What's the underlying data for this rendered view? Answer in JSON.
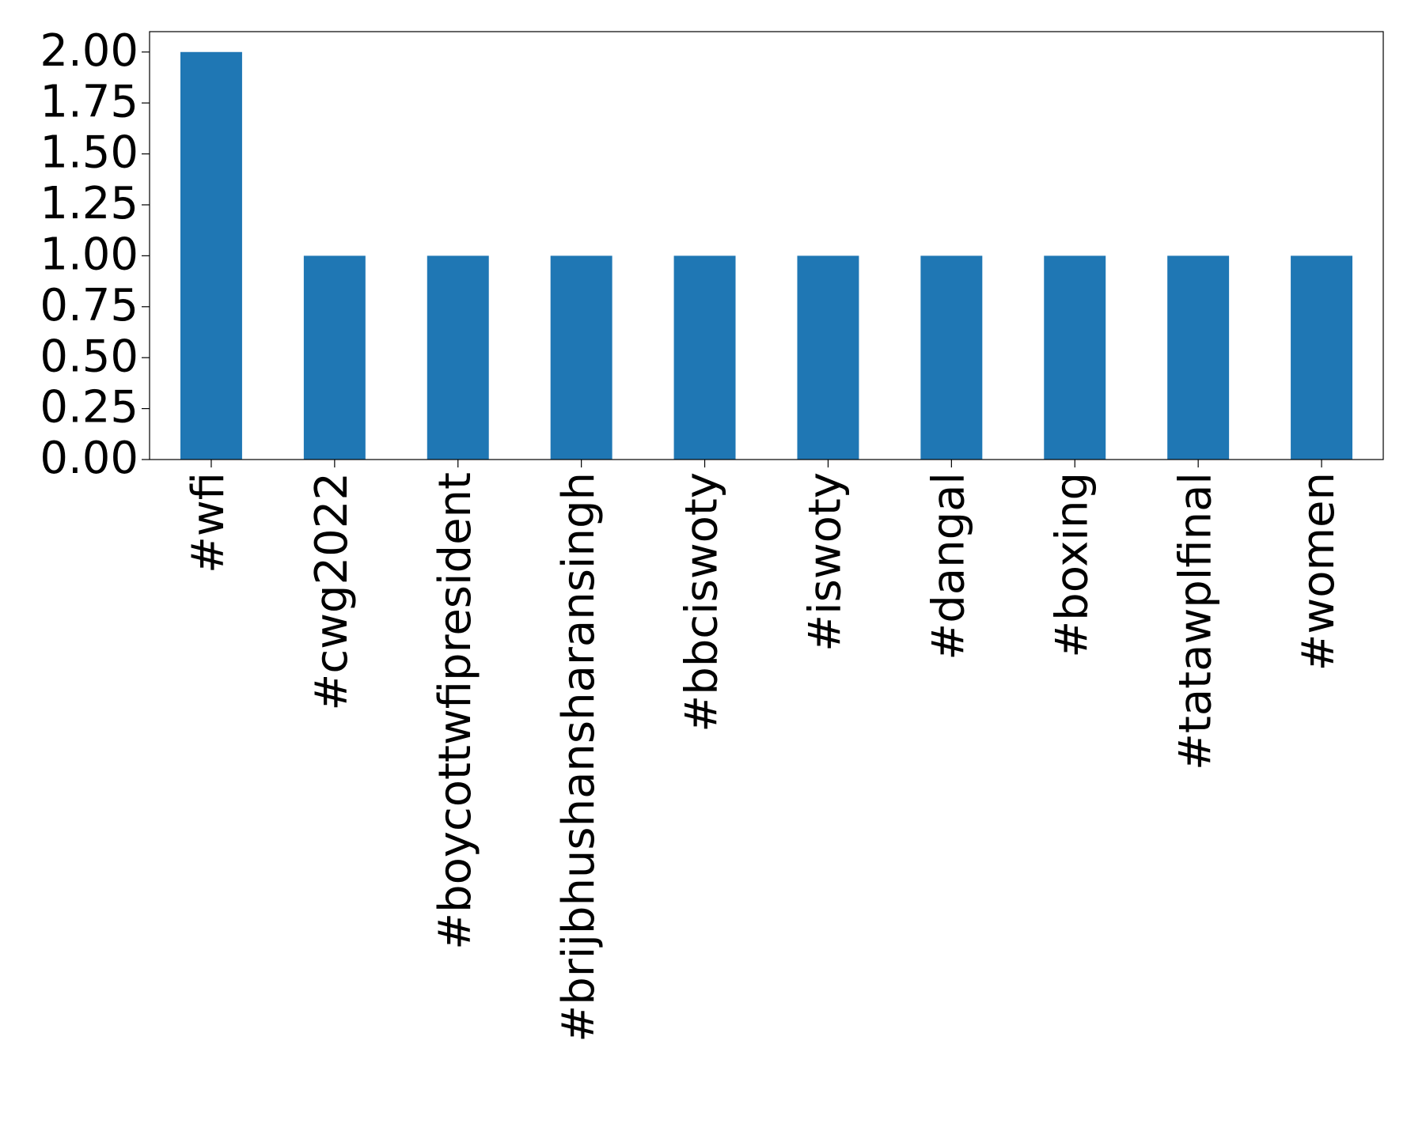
{
  "chart_data": {
    "type": "bar",
    "categories": [
      "#wfi",
      "#cwg2022",
      "#boycottwfipresident",
      "#brijbhushansharansingh",
      "#bbciswoty",
      "#iswoty",
      "#dangal",
      "#boxing",
      "#tatawplfinal",
      "#women"
    ],
    "values": [
      2,
      1,
      1,
      1,
      1,
      1,
      1,
      1,
      1,
      1
    ],
    "color": "#1f77b4",
    "ylim": [
      0,
      2.1
    ],
    "yticks": [
      {
        "value": 0,
        "label": "0.00"
      },
      {
        "value": 0.25,
        "label": "0.25"
      },
      {
        "value": 0.5,
        "label": "0.50"
      },
      {
        "value": 0.75,
        "label": "0.75"
      },
      {
        "value": 1,
        "label": "1.00"
      },
      {
        "value": 1.25,
        "label": "1.25"
      },
      {
        "value": 1.5,
        "label": "1.50"
      },
      {
        "value": 1.75,
        "label": "1.75"
      },
      {
        "value": 2,
        "label": "2.00"
      }
    ],
    "grid": false
  }
}
